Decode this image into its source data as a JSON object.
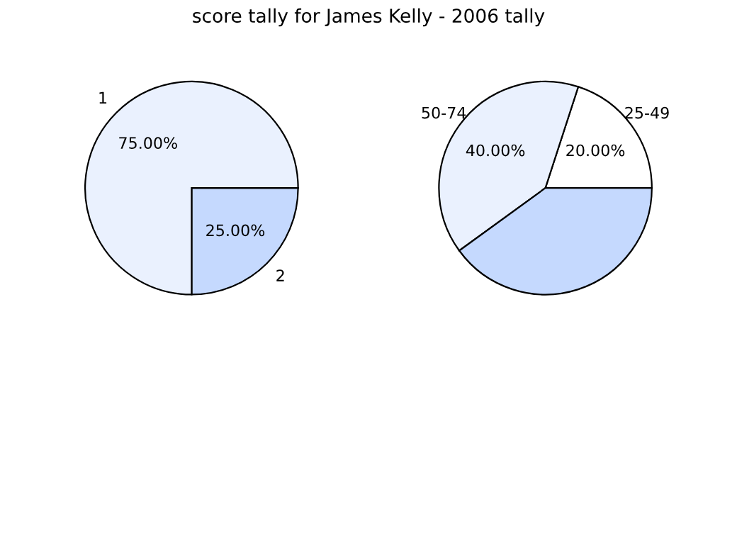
{
  "chart_data": [
    {
      "type": "pie",
      "title": "score tally for James Kelly - 2006 tally",
      "categories": [
        "2",
        "1"
      ],
      "values": [
        25,
        75
      ],
      "value_labels": [
        "25.00%",
        "75.00%"
      ],
      "colors": [
        "#c5d9fe",
        "#eaf1fe"
      ],
      "legend": false
    },
    {
      "type": "pie",
      "categories": [
        "25-49",
        "50-74",
        null
      ],
      "values": [
        20,
        40,
        40
      ],
      "value_labels": [
        "20.00%",
        "40.00%",
        null
      ],
      "colors": [
        "#ffffff",
        "#eaf1fe",
        "#c5d9fe"
      ],
      "legend": false
    }
  ]
}
